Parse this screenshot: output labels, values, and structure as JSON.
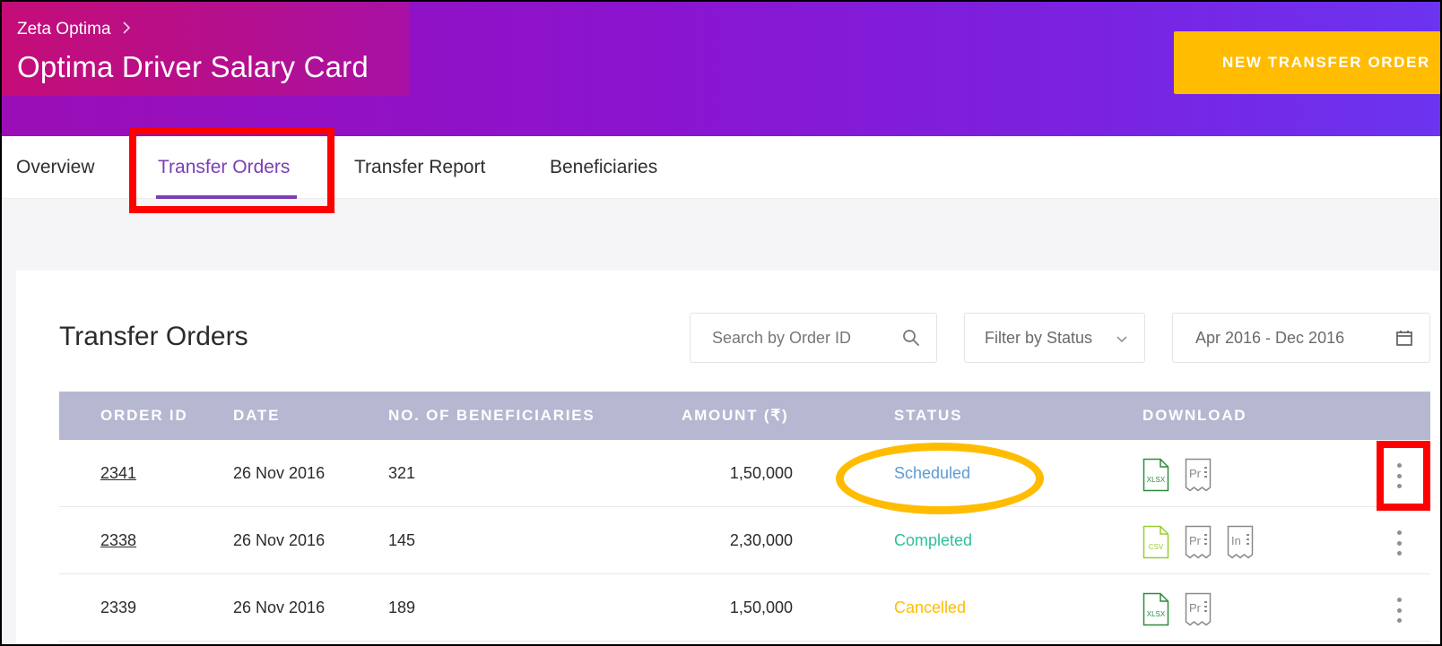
{
  "header": {
    "breadcrumb": "Zeta Optima",
    "title": "Optima Driver Salary Card",
    "new_order_button": "NEW TRANSFER ORDER"
  },
  "tabs": [
    {
      "label": "Overview",
      "active": false
    },
    {
      "label": "Transfer Orders",
      "active": true
    },
    {
      "label": "Transfer Report",
      "active": false
    },
    {
      "label": "Beneficiaries",
      "active": false
    }
  ],
  "main": {
    "title": "Transfer Orders",
    "search": {
      "placeholder": "Search by Order ID",
      "value": ""
    },
    "filter": {
      "label": "Filter by Status"
    },
    "date_range": {
      "value": "Apr 2016 - Dec 2016"
    }
  },
  "table": {
    "columns": [
      "ORDER ID",
      "DATE",
      "NO. OF BENEFICIARIES",
      "AMOUNT (₹)",
      "STATUS",
      "DOWNLOAD"
    ],
    "rows": [
      {
        "order_id": "2341",
        "date": "26 Nov 2016",
        "beneficiaries": "321",
        "amount": "1,50,000",
        "status": "Scheduled",
        "status_color": "#5b9bd5",
        "downloads": [
          "xlsx",
          "pr"
        ]
      },
      {
        "order_id": "2338",
        "date": "26 Nov 2016",
        "beneficiaries": "145",
        "amount": "2,30,000",
        "status": "Completed",
        "status_color": "#2fbf9b",
        "downloads": [
          "csv",
          "pr",
          "in"
        ]
      },
      {
        "order_id": "2339",
        "date": "26 Nov 2016",
        "beneficiaries": "189",
        "amount": "1,50,000",
        "status": "Cancelled",
        "status_color": "#ffbc00",
        "downloads": [
          "xlsx",
          "pr"
        ]
      }
    ]
  },
  "icons": {
    "xlsx": {
      "label": "XLSX",
      "color": "#2e8b3d"
    },
    "csv": {
      "label": "CSV",
      "color": "#9acd32"
    },
    "pr": {
      "label": "Pr",
      "color": "#8a8a8a"
    },
    "in": {
      "label": "In",
      "color": "#8a8a8a"
    }
  },
  "colors": {
    "accent_purple": "#7b3fb3",
    "button_yellow": "#ffbc00",
    "table_header": "#b6b8d2",
    "annotation_red": "#ff0000",
    "annotation_yellow": "#ffbc00"
  }
}
